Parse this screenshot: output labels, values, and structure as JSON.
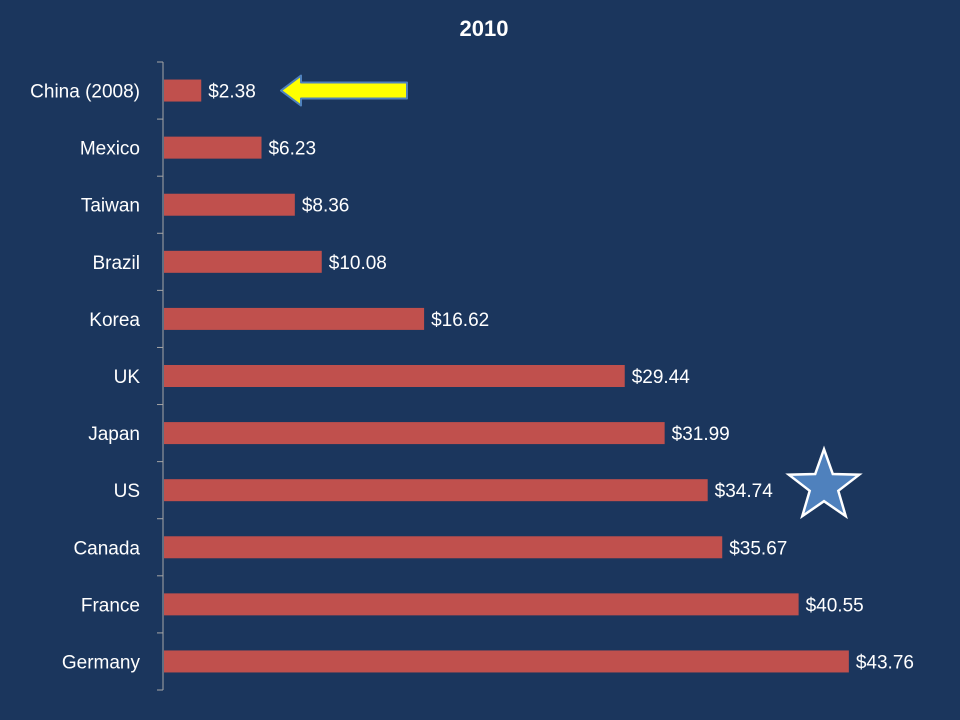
{
  "chart_data": {
    "type": "bar",
    "orientation": "horizontal",
    "title": "2010",
    "categories": [
      "China (2008)",
      "Mexico",
      "Taiwan",
      "Brazil",
      "Korea",
      "UK",
      "Japan",
      "US",
      "Canada",
      "France",
      "Germany"
    ],
    "values": [
      2.38,
      6.23,
      8.36,
      10.08,
      16.62,
      29.44,
      31.99,
      34.74,
      35.67,
      40.55,
      43.76
    ],
    "value_labels": [
      "$2.38",
      "$6.23",
      "$8.36",
      "$10.08",
      "$16.62",
      "$29.44",
      "$31.99",
      "$34.74",
      "$35.67",
      "$40.55",
      "$43.76"
    ],
    "xlabel": "",
    "ylabel": "",
    "xlim": [
      0,
      45
    ],
    "grid": false,
    "legend": "none",
    "bar_color": "#c0504d",
    "background_color": "#1b365d",
    "text_color": "#ffffff"
  },
  "annotations": {
    "arrow": {
      "target_category": "China (2008)",
      "icon": "left-arrow-icon",
      "fill_color": "#ffff00",
      "stroke_color": "#4f81bd"
    },
    "star": {
      "target_category": "US",
      "icon": "star-icon",
      "fill_color": "#4f81bd",
      "stroke_color": "#ffffff"
    }
  }
}
